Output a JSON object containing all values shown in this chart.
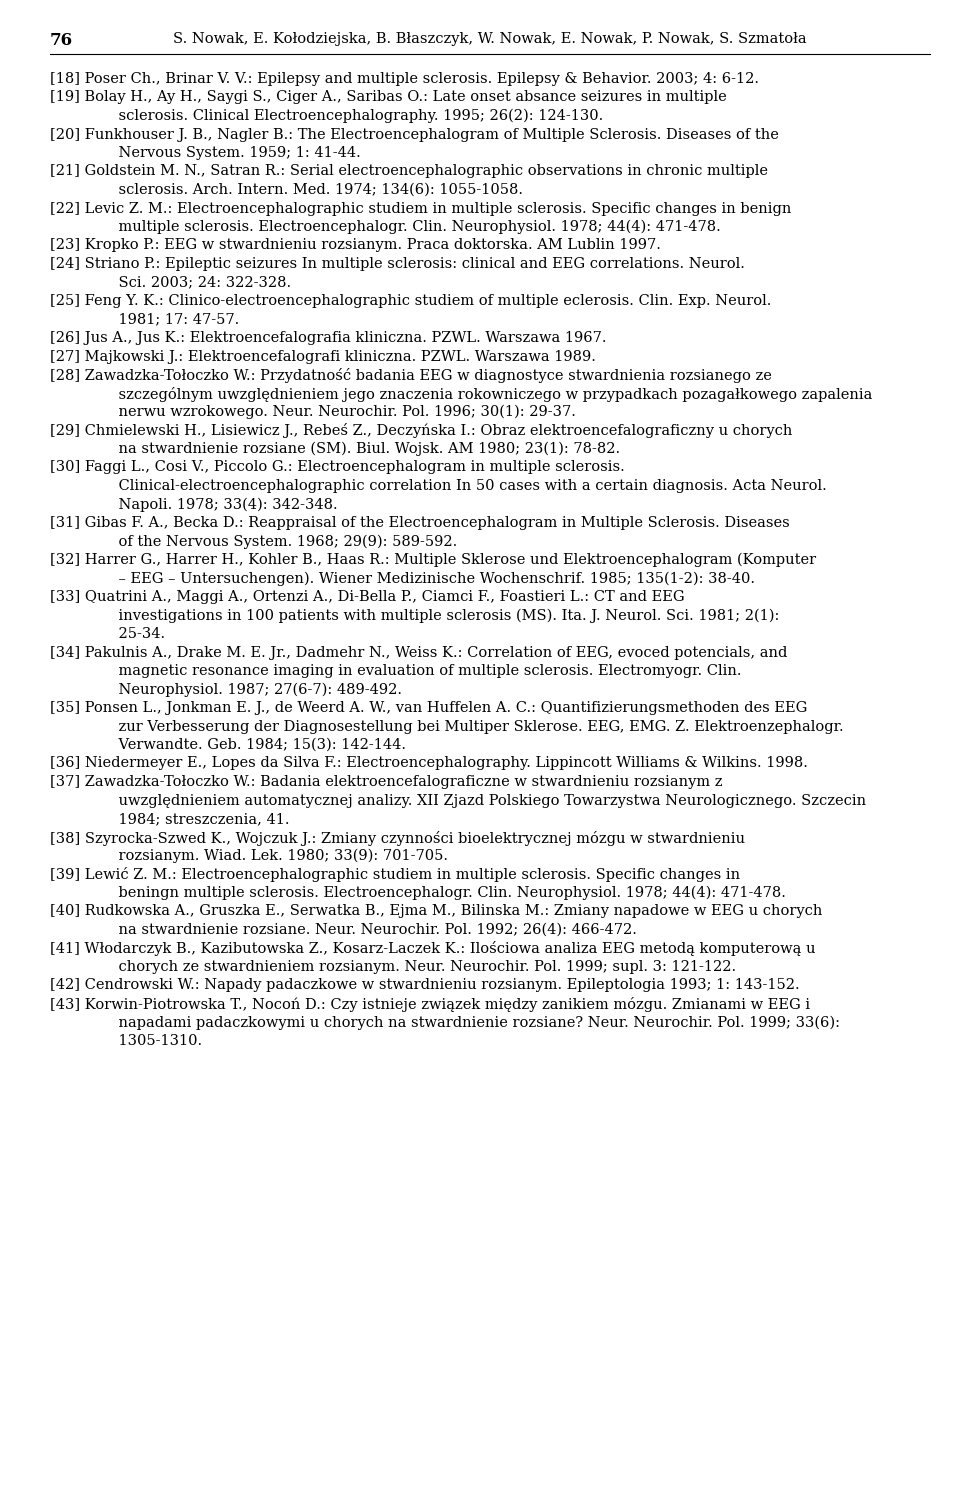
{
  "page_number": "76",
  "header_authors": "S. Nowak, E. Kołodziejska, B. Błaszczyk, W. Nowak, E. Nowak, P. Nowak, S. Szmatoła",
  "background_color": "#ffffff",
  "text_color": "#000000",
  "font_size": 10.5,
  "header_font_size": 10.5,
  "page_num_font_size": 12,
  "references": [
    "[18] Poser Ch., Brinar V. V.: Epilepsy and multiple sclerosis. Epilepsy & Behavior. 2003; 4: 6-12.",
    "[19] Bolay H., Ay H., Saygi S., Ciger A., Saribas O.: Late onset absance seizures in multiple sclerosis. Clinical Electroencephalography. 1995; 26(2): 124-130.",
    "[20] Funkhouser J. B., Nagler B.: The Electroencephalogram of Multiple Sclerosis. Diseases of the Nervous System. 1959; 1: 41-44.",
    "[21] Goldstein M. N., Satran R.: Serial electroencephalographic observations in chronic multiple sclerosis. Arch. Intern. Med. 1974; 134(6): 1055-1058.",
    "[22] Levic Z. M.: Electroencephalographic studiem in multiple sclerosis. Specific changes in benign multiple sclerosis. Electroencephalogr. Clin. Neurophysiol. 1978; 44(4): 471-478.",
    "[23] Kropko P.: EEG w stwardnieniu rozsianym. Praca doktorska. AM Lublin 1997.",
    "[24] Striano P.: Epileptic seizures In multiple sclerosis: clinical and EEG correlations. Neurol. Sci. 2003; 24: 322-328.",
    "[25] Feng Y. K.: Clinico-electroencephalographic studiem of multiple eclerosis. Clin. Exp. Neurol. 1981; 17: 47-57.",
    "[26] Jus A., Jus K.: Elektroencefalografia kliniczna. PZWL. Warszawa 1967.",
    "[27] Majkowski J.: Elektroencefalografi kliniczna. PZWL. Warszawa 1989.",
    "[28] Zawadzka-Tołoczko W.: Przydatność badania EEG w diagnostyce stwardnienia rozsianego ze szczególnym uwzględnieniem jego znaczenia rokowniczego w przypadkach pozagałkowego zapalenia nerwu wzrokowego. Neur. Neurochir. Pol. 1996; 30(1): 29-37.",
    "[29] Chmielewski H., Lisiewicz J., Rebeś Z., Deczyńska I.: Obraz elektroencefalograficzny u chorych na stwardnienie rozsiane (SM). Biul. Wojsk. AM 1980; 23(1): 78-82.",
    "[30] Faggi L., Cosi V., Piccolo G.: Electroencephalogram in multiple sclerosis. Clinical-electroencephalographic correlation In 50 cases with a certain diagnosis. Acta Neurol. Napoli. 1978; 33(4): 342-348.",
    "[31] Gibas F. A., Becka D.: Reappraisal of the Electroencephalogram in Multiple Sclerosis. Diseases of the Nervous System. 1968; 29(9): 589-592.",
    "[32] Harrer G., Harrer H., Kohler B., Haas R.: Multiple Sklerose und Elektroencephalogram (Komputer – EEG – Untersuchengen). Wiener Medizinische Wochenschrif. 1985; 135(1-2): 38-40.",
    "[33] Quatrini A., Maggi A., Ortenzi A., Di-Bella P., Ciamci F., Foastieri L.: CT and EEG investigations in 100 patients with multiple sclerosis (MS). Ita. J. Neurol. Sci. 1981; 2(1): 25-34.",
    "[34] Pakulnis A., Drake M. E. Jr., Dadmehr N., Weiss K.: Correlation of EEG, evoced potencials, and magnetic resonance imaging in evaluation of multiple sclerosis. Electromyogr. Clin. Neurophysiol. 1987; 27(6-7): 489-492.",
    "[35] Ponsen L., Jonkman E. J., de Weerd A. W., van Huffelen A. C.: Quantifizierungsmethoden des EEG zur Verbesserung der Diagnosestellung bei Multiper Sklerose. EEG, EMG. Z. Elektroenzephalogr. Verwandte. Geb. 1984; 15(3): 142-144.",
    "[36] Niedermeyer E., Lopes da Silva F.: Electroencephalography. Lippincott Williams & Wilkins. 1998.",
    "[37] Zawadzka-Tołoczko W.: Badania elektroencefalograficzne w stwardnieniu rozsianym z uwzględnieniem automatycznej analizy. XII Zjazd Polskiego Towarzystwa Neurologicznego. Szczecin 1984; streszczenia, 41.",
    "[38] Szyrocka-Szwed K., Wojczuk J.: Zmiany czynności bioelektrycznej mózgu w stwardnieniu rozsianym. Wiad. Lek. 1980; 33(9): 701-705.",
    "[39] Lewić Z. M.: Electroencephalographic studiem in multiple sclerosis. Specific changes in beningn multiple sclerosis. Electroencephalogr. Clin. Neurophysiol. 1978; 44(4): 471-478.",
    "[40] Rudkowska A., Gruszka E., Serwatka B., Ejma M., Bilinska M.: Zmiany napadowe w EEG u chorych na stwardnienie rozsiane. Neur. Neurochir. Pol. 1992; 26(4): 466-472.",
    "[41] Włodarczyk B., Kazibutowska Z., Kosarz-Laczek K.: Ilościowa analiza EEG metodą komputerową u chorych ze stwardnieniem rozsianym. Neur. Neurochir. Pol. 1999; supl. 3: 121-122.",
    "[42] Cendrowski W.: Napady padaczkowe w stwardnieniu rozsianym. Epileptologia 1993; 1: 143-152.",
    "[43] Korwin-Piotrowska T., Nocoń D.: Czy istnieje związek między zanikiem mózgu. Zmianami w EEG i napadami padaczkowymi u chorych na stwardnienie rozsiane? Neur. Neurochir. Pol. 1999; 33(6): 1305-1310."
  ]
}
